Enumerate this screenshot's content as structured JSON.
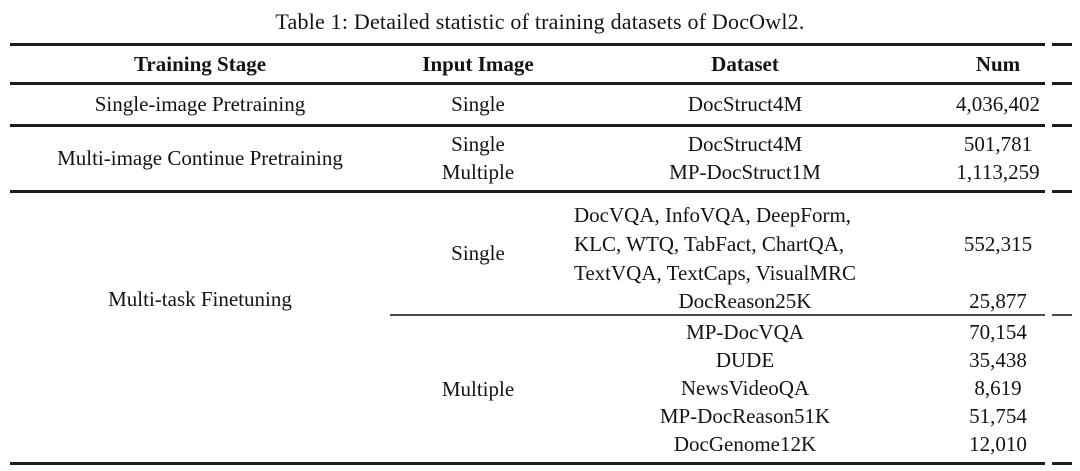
{
  "caption": "Table 1: Detailed statistic of training datasets of DocOwl2.",
  "colors": {
    "rule": "#1c1c1c",
    "partial_rule": "#4a4a4a",
    "text": "#141414",
    "background": "#ffffff"
  },
  "table": {
    "headers": {
      "stage": "Training Stage",
      "input": "Input Image",
      "dataset": "Dataset",
      "num": "Num"
    },
    "row1": {
      "stage": "Single-image Pretraining",
      "input": "Single",
      "dataset": "DocStruct4M",
      "num": "4,036,402"
    },
    "row2": {
      "stage": "Multi-image Continue Pretraining",
      "entries": [
        {
          "input": "Single",
          "dataset": "DocStruct4M",
          "num": "501,781"
        },
        {
          "input": "Multiple",
          "dataset": "MP-DocStruct1M",
          "num": "1,113,259"
        }
      ]
    },
    "row3": {
      "stage": "Multi-task Finetuning",
      "single": {
        "input": "Single",
        "multi_dataset_lines": [
          "DocVQA, InfoVQA, DeepForm,",
          "KLC, WTQ, TabFact, ChartQA,",
          "TextVQA, TextCaps, VisualMRC"
        ],
        "multi_num": "552,315",
        "extra": {
          "dataset": "DocReason25K",
          "num": "25,877"
        }
      },
      "multiple": {
        "input": "Multiple",
        "entries": [
          {
            "dataset": "MP-DocVQA",
            "num": "70,154"
          },
          {
            "dataset": "DUDE",
            "num": "35,438"
          },
          {
            "dataset": "NewsVideoQA",
            "num": "8,619"
          },
          {
            "dataset": "MP-DocReason51K",
            "num": "51,754"
          },
          {
            "dataset": "DocGenome12K",
            "num": "12,010"
          }
        ]
      }
    }
  }
}
